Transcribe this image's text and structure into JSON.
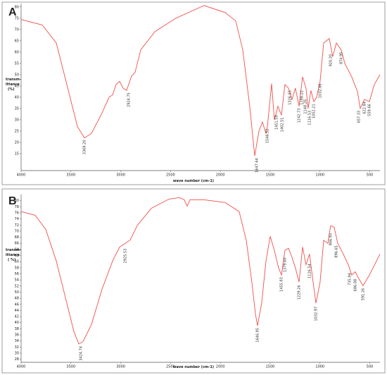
{
  "chart_data": [
    {
      "type": "line",
      "label": "A",
      "xlabel": "wave number (cm-1)",
      "ylabel_lines": [
        "transm-",
        "ittance",
        "(%)"
      ],
      "color": "#f0504a",
      "xlim": [
        4000,
        398
      ],
      "ylim": [
        7.5,
        81.5
      ],
      "xticks": [
        4000,
        3500,
        3000,
        2500,
        2000,
        1500,
        1000,
        500
      ],
      "yticks": [
        15,
        20,
        25,
        30,
        35,
        40,
        45,
        50,
        55,
        60,
        65,
        70,
        75,
        80
      ],
      "x": [
        4000,
        3788,
        3647,
        3541,
        3435,
        3364,
        3294,
        3188,
        3117,
        3082,
        3047,
        3011,
        2976,
        2941,
        2891,
        2856,
        2799,
        2658,
        2446,
        2164,
        1952,
        1846,
        1775,
        1705,
        1655,
        1613,
        1578,
        1542,
        1528,
        1486,
        1458,
        1422,
        1387,
        1352,
        1316,
        1281,
        1246,
        1210,
        1175,
        1140,
        1119,
        1091,
        1062,
        1034,
        999,
        963,
        907,
        872,
        836,
        787,
        751,
        681,
        624,
        596,
        554,
        504,
        455,
        398
      ],
      "values": [
        74.4,
        72,
        64,
        45.6,
        27,
        22,
        24,
        33,
        40,
        41,
        45.6,
        47,
        44,
        43,
        49.4,
        51,
        61,
        69,
        75,
        80.6,
        77.5,
        73.8,
        61,
        36,
        14,
        25,
        29,
        24,
        26.9,
        46,
        30,
        36,
        32,
        45.6,
        44,
        39,
        44,
        36,
        49,
        44,
        35,
        43,
        38,
        40,
        47,
        64,
        66,
        58,
        64,
        61,
        55,
        49,
        42.5,
        35,
        39,
        38,
        45.6,
        50
      ],
      "annotations": [
        {
          "x": 3364,
          "y": 22,
          "text": "3369.20"
        },
        {
          "x": 2920,
          "y": 43,
          "text": "2924.75"
        },
        {
          "x": 1634,
          "y": 14,
          "text": "1647.64"
        },
        {
          "x": 1528,
          "y": 27,
          "text": "1546.52"
        },
        {
          "x": 1437,
          "y": 33,
          "text": "1451.59"
        },
        {
          "x": 1380,
          "y": 32,
          "text": "1402.51"
        },
        {
          "x": 1302,
          "y": 44,
          "text": "1326.55"
        },
        {
          "x": 1210,
          "y": 36,
          "text": "1242.73"
        },
        {
          "x": 1182,
          "y": 44,
          "text": "1198.22"
        },
        {
          "x": 1147,
          "y": 40,
          "text": "1148.26"
        },
        {
          "x": 1105,
          "y": 35,
          "text": "1116.53"
        },
        {
          "x": 1062,
          "y": 38,
          "text": "1052.21"
        },
        {
          "x": 999,
          "y": 47,
          "text": "1032.86"
        },
        {
          "x": 893,
          "y": 60,
          "text": "920.20"
        },
        {
          "x": 787,
          "y": 61,
          "text": "874.95"
        },
        {
          "x": 610,
          "y": 35,
          "text": "657.33"
        },
        {
          "x": 554,
          "y": 39,
          "text": "622.84"
        },
        {
          "x": 504,
          "y": 38,
          "text": "559.66"
        }
      ]
    },
    {
      "type": "line",
      "label": "B",
      "xlabel": "wave number (cm-1)",
      "ylabel_lines": [
        "transm-",
        "ittance",
        "( %)"
      ],
      "color": "#f0504a",
      "xlim": [
        4000,
        398
      ],
      "ylim": [
        27,
        82
      ],
      "xticks": [
        4000,
        3500,
        3000,
        2500,
        2000,
        1500,
        1000,
        500
      ],
      "yticks": [
        28,
        30,
        32,
        34,
        36,
        38,
        40,
        42,
        44,
        46,
        48,
        50,
        52,
        54,
        56,
        58,
        60,
        62,
        64,
        66,
        68,
        70,
        72,
        74,
        76,
        78,
        80
      ],
      "x": [
        4000,
        3859,
        3753,
        3647,
        3541,
        3470,
        3421,
        3379,
        3294,
        3188,
        3082,
        3011,
        2955,
        2905,
        2835,
        2693,
        2517,
        2411,
        2362,
        2334,
        2305,
        2164,
        1952,
        1811,
        1740,
        1684,
        1648,
        1627,
        1585,
        1542,
        1500,
        1458,
        1415,
        1387,
        1352,
        1316,
        1281,
        1246,
        1210,
        1175,
        1140,
        1105,
        1069,
        1041,
        999,
        963,
        921,
        893,
        858,
        822,
        766,
        716,
        681,
        646,
        610,
        568,
        504,
        398
      ],
      "values": [
        76.4,
        75.2,
        70.6,
        60.2,
        46.4,
        37.1,
        33,
        33.8,
        39.4,
        51,
        60.2,
        64.8,
        66,
        67.1,
        71.8,
        77.5,
        80.5,
        81,
        80.3,
        78.2,
        80.3,
        80.3,
        79.4,
        76.4,
        67,
        53.3,
        42.9,
        39,
        46.4,
        60.2,
        68.3,
        63.7,
        57.9,
        55.6,
        63.7,
        64.4,
        61.4,
        57.9,
        53.3,
        64.8,
        59,
        62.5,
        53.3,
        46.4,
        53.3,
        67,
        66,
        71.8,
        71.3,
        66,
        62.5,
        59,
        55.6,
        56.7,
        54.4,
        52.1,
        55.6,
        62.5
      ],
      "annotations": [
        {
          "x": 3400,
          "y": 33,
          "text": "3424.74"
        },
        {
          "x": 2955,
          "y": 65,
          "text": "2925.53"
        },
        {
          "x": 1627,
          "y": 39,
          "text": "1646.95"
        },
        {
          "x": 1387,
          "y": 55.6,
          "text": "1455.93"
        },
        {
          "x": 1352,
          "y": 62,
          "text": "1379.60"
        },
        {
          "x": 1210,
          "y": 53,
          "text": "1229.26"
        },
        {
          "x": 1105,
          "y": 60,
          "text": "1126.54"
        },
        {
          "x": 1041,
          "y": 46,
          "text": "1032.97"
        },
        {
          "x": 893,
          "y": 70,
          "text": "906.93"
        },
        {
          "x": 836,
          "y": 66,
          "text": "896.65"
        },
        {
          "x": 702,
          "y": 57,
          "text": "735.94"
        },
        {
          "x": 646,
          "y": 55,
          "text": "686.08"
        },
        {
          "x": 568,
          "y": 52,
          "text": "591.26"
        }
      ]
    }
  ]
}
